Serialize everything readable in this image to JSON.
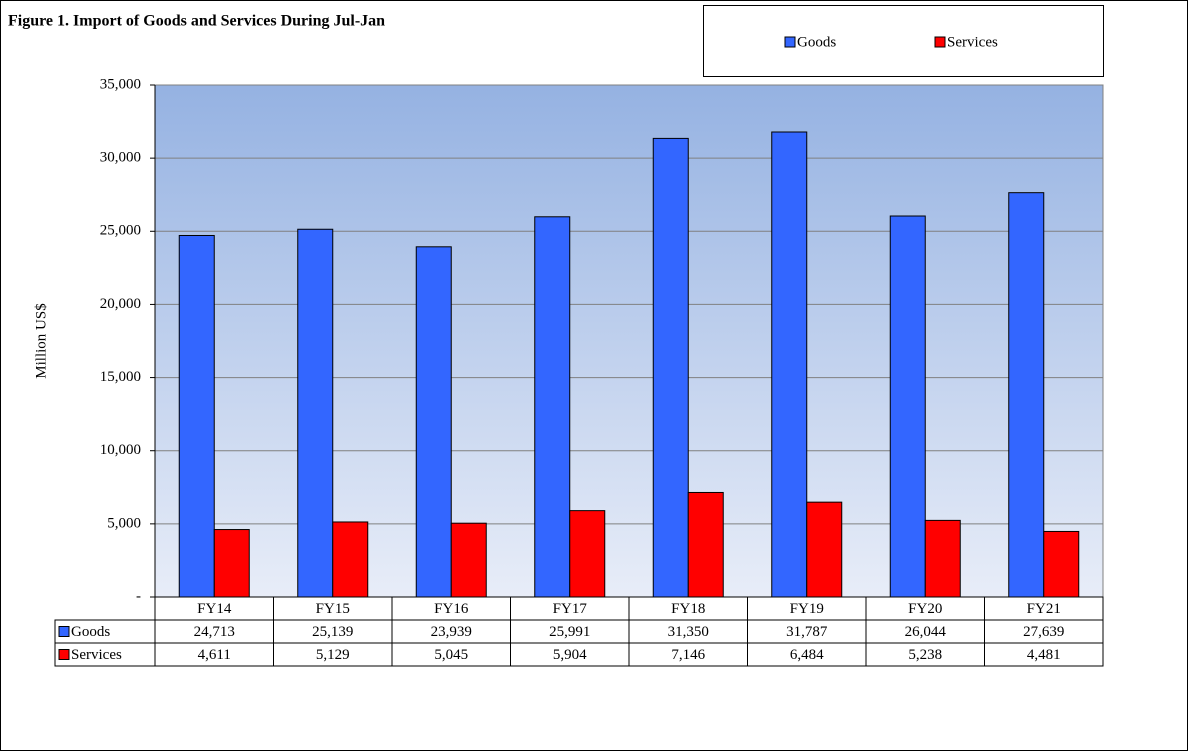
{
  "chart_data": {
    "type": "bar",
    "title": "Figure 1. Import  of Goods  and Services  During Jul-Jan",
    "ylabel": "Million US$",
    "categories": [
      "FY14",
      "FY15",
      "FY16",
      "FY17",
      "FY18",
      "FY19",
      "FY20",
      "FY21"
    ],
    "series": [
      {
        "name": "Goods",
        "color": "#3366ff",
        "values": [
          24713,
          25139,
          23939,
          25991,
          31350,
          31787,
          26044,
          27639
        ],
        "value_labels": [
          "24,713",
          "25,139",
          "23,939",
          "25,991",
          "31,350",
          "31,787",
          "26,044",
          "27,639"
        ]
      },
      {
        "name": "Services",
        "color": "#ff0000",
        "values": [
          4611,
          5129,
          5045,
          5904,
          7146,
          6484,
          5238,
          4481
        ],
        "value_labels": [
          "4,611",
          "5,129",
          "5,045",
          "5,904",
          "7,146",
          "6,484",
          "5,238",
          "4,481"
        ]
      }
    ],
    "ylim": [
      0,
      35000
    ],
    "yticks": [
      {
        "value": 0,
        "label": "-"
      },
      {
        "value": 5000,
        "label": "5,000"
      },
      {
        "value": 10000,
        "label": "10,000"
      },
      {
        "value": 15000,
        "label": "15,000"
      },
      {
        "value": 20000,
        "label": "20,000"
      },
      {
        "value": 25000,
        "label": "25,000"
      },
      {
        "value": 30000,
        "label": "30,000"
      },
      {
        "value": 35000,
        "label": "35,000"
      }
    ],
    "grid": true,
    "legend": "top-right"
  }
}
